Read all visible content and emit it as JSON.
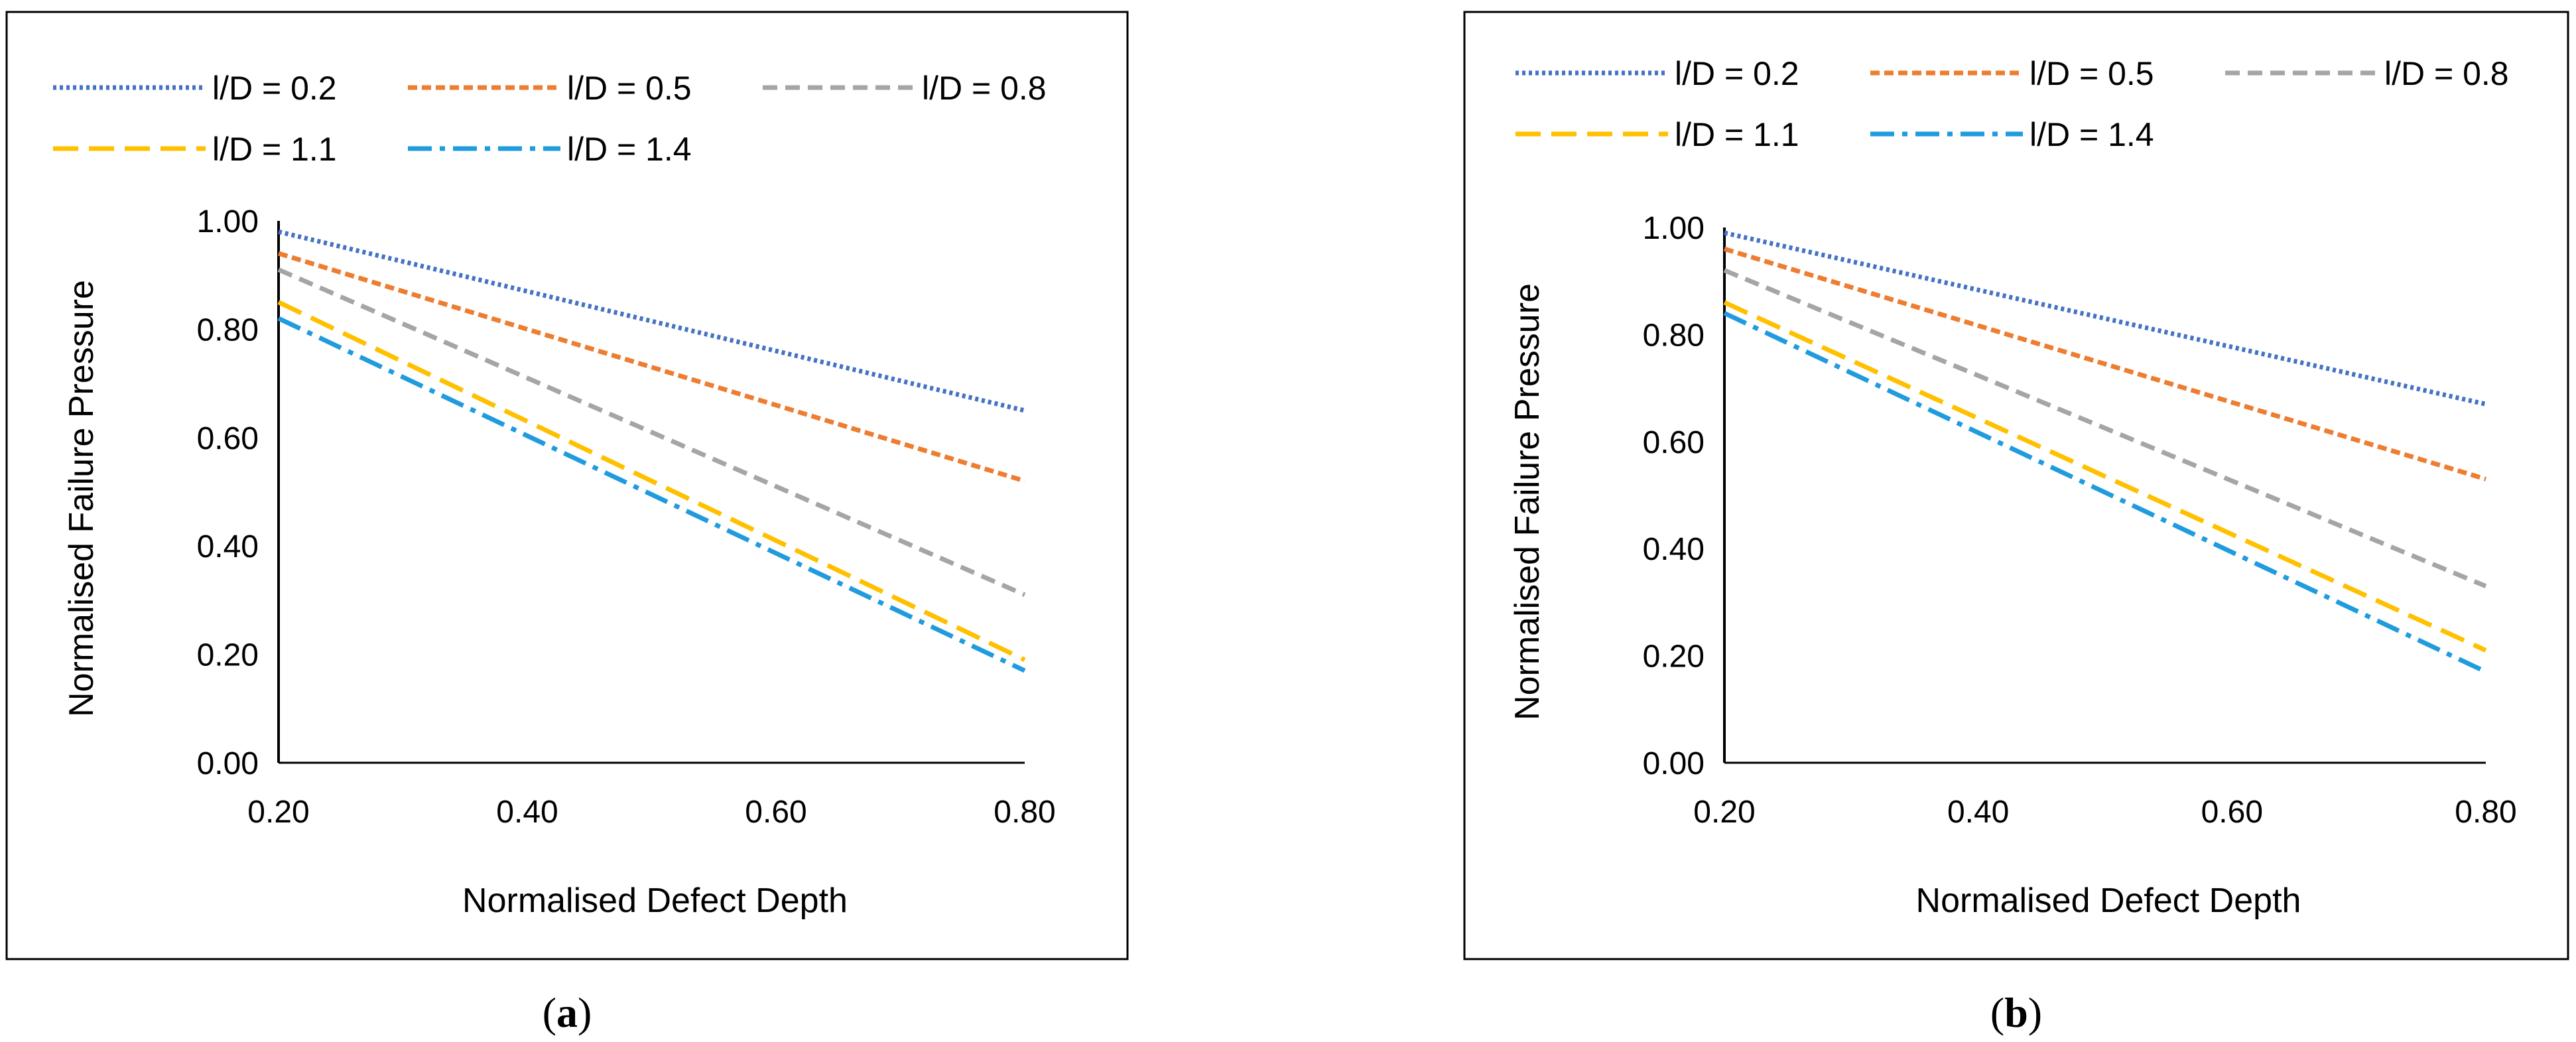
{
  "chart_data": [
    {
      "type": "line",
      "caption": "a",
      "xlabel": "Normalised Defect Depth",
      "ylabel": "Normalised Failure Pressure",
      "xlim": [
        0.2,
        0.8
      ],
      "ylim": [
        0.0,
        1.0
      ],
      "xticks": [
        "0.20",
        "0.40",
        "0.60",
        "0.80"
      ],
      "yticks": [
        "0.00",
        "0.20",
        "0.40",
        "0.60",
        "0.80",
        "1.00"
      ],
      "x": [
        0.2,
        0.8
      ],
      "series": [
        {
          "name": "l/D = 0.2",
          "color": "#4472C4",
          "dash": "dotted",
          "values": [
            0.98,
            0.65
          ]
        },
        {
          "name": "l/D = 0.5",
          "color": "#ED7D31",
          "dash": "short-dash",
          "values": [
            0.94,
            0.52
          ]
        },
        {
          "name": "l/D = 0.8",
          "color": "#A5A5A5",
          "dash": "dash",
          "values": [
            0.91,
            0.31
          ]
        },
        {
          "name": "l/D = 1.1",
          "color": "#FFC000",
          "dash": "long-dash",
          "values": [
            0.85,
            0.19
          ]
        },
        {
          "name": "l/D = 1.4",
          "color": "#1F9BDE",
          "dash": "dash-dot",
          "values": [
            0.82,
            0.17
          ]
        }
      ]
    },
    {
      "type": "line",
      "caption": "b",
      "xlabel": "Normalised Defect Depth",
      "ylabel": "Normalised Failure Pressure",
      "xlim": [
        0.2,
        0.8
      ],
      "ylim": [
        0.0,
        1.0
      ],
      "xticks": [
        "0.20",
        "0.40",
        "0.60",
        "0.80"
      ],
      "yticks": [
        "0.00",
        "0.20",
        "0.40",
        "0.60",
        "0.80",
        "1.00"
      ],
      "x": [
        0.2,
        0.8
      ],
      "series": [
        {
          "name": "l/D = 0.2",
          "color": "#4472C4",
          "dash": "dotted",
          "values": [
            0.99,
            0.67
          ]
        },
        {
          "name": "l/D = 0.5",
          "color": "#ED7D31",
          "dash": "short-dash",
          "values": [
            0.96,
            0.53
          ]
        },
        {
          "name": "l/D = 0.8",
          "color": "#A5A5A5",
          "dash": "dash",
          "values": [
            0.92,
            0.33
          ]
        },
        {
          "name": "l/D = 1.1",
          "color": "#FFC000",
          "dash": "long-dash",
          "values": [
            0.86,
            0.21
          ]
        },
        {
          "name": "l/D = 1.4",
          "color": "#1F9BDE",
          "dash": "dash-dot",
          "values": [
            0.84,
            0.17
          ]
        }
      ]
    }
  ]
}
